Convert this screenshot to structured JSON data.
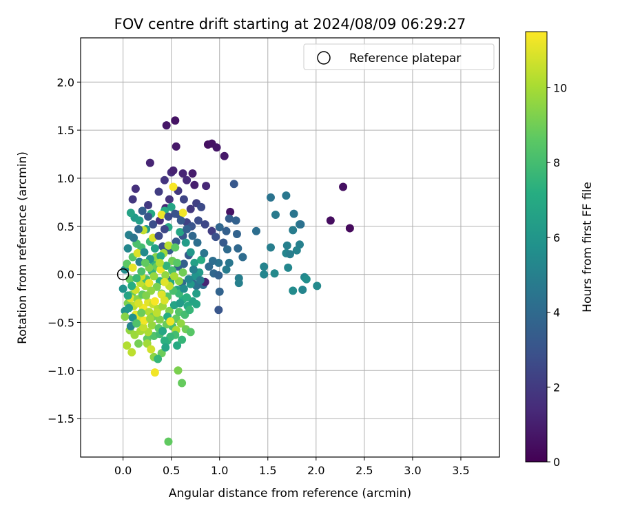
{
  "chart_data": {
    "type": "scatter",
    "title": "FOV centre drift starting at 2024/08/09 06:29:27",
    "xlabel": "Angular distance from reference (arcmin)",
    "ylabel": "Rotation from reference (arcmin)",
    "xlim": [
      -0.44,
      3.9
    ],
    "ylim": [
      -1.9,
      2.46
    ],
    "xticks": [
      0.0,
      0.5,
      1.0,
      1.5,
      2.0,
      2.5,
      3.0,
      3.5
    ],
    "xtick_labels": [
      "0.0",
      "0.5",
      "1.0",
      "1.5",
      "2.0",
      "2.5",
      "3.0",
      "3.5"
    ],
    "yticks": [
      -1.5,
      -1.0,
      -0.5,
      0.0,
      0.5,
      1.0,
      1.5,
      2.0
    ],
    "ytick_labels": [
      "−1.5",
      "−1.0",
      "−0.5",
      "0.0",
      "0.5",
      "1.0",
      "1.5",
      "2.0"
    ],
    "grid": true,
    "legend": {
      "position": "top-right",
      "label": "Reference platepar"
    },
    "reference_point": {
      "x": 0.0,
      "y": 0.0
    },
    "colorbar": {
      "label": "Hours from first FF file",
      "range": [
        0,
        11.5
      ],
      "ticks": [
        0,
        2,
        4,
        6,
        8,
        10
      ],
      "tick_labels": [
        "0",
        "2",
        "4",
        "6",
        "8",
        "10"
      ],
      "colormap": "viridis"
    },
    "points": [
      [
        0.54,
        1.6,
        0.6
      ],
      [
        0.45,
        1.55,
        0.7
      ],
      [
        0.55,
        1.33,
        0.8
      ],
      [
        0.88,
        1.35,
        0.5
      ],
      [
        0.92,
        1.36,
        0.6
      ],
      [
        0.97,
        1.32,
        0.7
      ],
      [
        1.05,
        1.23,
        0.8
      ],
      [
        0.28,
        1.16,
        1.2
      ],
      [
        2.28,
        0.91,
        0.5
      ],
      [
        2.15,
        0.56,
        0.4
      ],
      [
        2.35,
        0.48,
        0.3
      ],
      [
        1.11,
        0.65,
        0.6
      ],
      [
        0.5,
        1.06,
        1.5
      ],
      [
        0.62,
        1.05,
        1.2
      ],
      [
        0.72,
        1.05,
        0.9
      ],
      [
        0.52,
        1.08,
        1.1
      ],
      [
        0.43,
        0.98,
        1.8
      ],
      [
        0.66,
        0.98,
        1.4
      ],
      [
        0.74,
        0.93,
        1.0
      ],
      [
        0.86,
        0.92,
        1.3
      ],
      [
        0.13,
        0.89,
        1.6
      ],
      [
        0.37,
        0.86,
        2.1
      ],
      [
        0.57,
        0.87,
        1.9
      ],
      [
        0.1,
        0.78,
        1.9
      ],
      [
        0.48,
        0.78,
        1.7
      ],
      [
        0.26,
        0.72,
        2.0
      ],
      [
        0.63,
        0.78,
        2.4
      ],
      [
        0.76,
        0.74,
        2.2
      ],
      [
        0.44,
        0.69,
        1.3
      ],
      [
        0.7,
        0.68,
        1.9
      ],
      [
        0.81,
        0.7,
        2.6
      ],
      [
        0.58,
        0.62,
        2.8
      ],
      [
        0.66,
        0.54,
        2.3
      ],
      [
        0.78,
        0.56,
        2.7
      ],
      [
        0.85,
        0.52,
        2.5
      ],
      [
        0.38,
        0.56,
        1.6
      ],
      [
        0.92,
        0.45,
        2.1
      ],
      [
        0.96,
        0.39,
        2.9
      ],
      [
        1.1,
        0.58,
        3.4
      ],
      [
        1.15,
        0.94,
        3.2
      ],
      [
        1.17,
        0.56,
        3.6
      ],
      [
        1.0,
        0.49,
        3.8
      ],
      [
        1.07,
        0.45,
        3.5
      ],
      [
        1.04,
        0.33,
        3.3
      ],
      [
        1.18,
        0.42,
        3.7
      ],
      [
        1.08,
        0.26,
        4.0
      ],
      [
        1.19,
        0.27,
        3.9
      ],
      [
        1.24,
        0.18,
        4.1
      ],
      [
        1.38,
        0.45,
        4.2
      ],
      [
        1.53,
        0.8,
        4.4
      ],
      [
        1.69,
        0.82,
        4.6
      ],
      [
        1.58,
        0.62,
        4.7
      ],
      [
        1.77,
        0.63,
        4.5
      ],
      [
        1.83,
        0.52,
        4.9
      ],
      [
        1.76,
        0.46,
        4.8
      ],
      [
        1.84,
        0.52,
        4.3
      ],
      [
        1.53,
        0.28,
        4.9
      ],
      [
        1.7,
        0.3,
        5.0
      ],
      [
        1.8,
        0.25,
        5.1
      ],
      [
        1.69,
        0.22,
        5.2
      ],
      [
        1.73,
        0.21,
        4.9
      ],
      [
        1.83,
        0.31,
        5.0
      ],
      [
        1.46,
        0.08,
        5.1
      ],
      [
        1.71,
        0.07,
        5.3
      ],
      [
        1.46,
        0.0,
        5.2
      ],
      [
        1.57,
        0.01,
        5.4
      ],
      [
        1.76,
        -0.17,
        5.5
      ],
      [
        1.86,
        -0.16,
        5.2
      ],
      [
        1.88,
        -0.03,
        5.3
      ],
      [
        1.9,
        -0.05,
        5.6
      ],
      [
        2.01,
        -0.12,
        5.4
      ],
      [
        1.2,
        -0.04,
        4.9
      ],
      [
        1.2,
        -0.09,
        5.0
      ],
      [
        1.07,
        0.05,
        4.8
      ],
      [
        1.1,
        0.12,
        4.6
      ],
      [
        0.99,
        0.12,
        4.4
      ],
      [
        0.93,
        0.14,
        4.2
      ],
      [
        0.89,
        0.08,
        4.0
      ],
      [
        0.94,
        0.01,
        3.8
      ],
      [
        0.99,
        -0.01,
        3.6
      ],
      [
        1.0,
        -0.18,
        3.7
      ],
      [
        0.99,
        -0.37,
        3.1
      ],
      [
        0.71,
        0.5,
        3.0
      ],
      [
        0.62,
        0.4,
        3.1
      ],
      [
        0.55,
        0.34,
        3.2
      ],
      [
        0.68,
        0.2,
        3.3
      ],
      [
        0.63,
        0.11,
        3.5
      ],
      [
        0.48,
        0.25,
        3.4
      ],
      [
        0.41,
        0.29,
        2.9
      ],
      [
        0.57,
        0.08,
        3.6
      ],
      [
        0.49,
        -0.06,
        3.8
      ],
      [
        0.61,
        -0.09,
        4.0
      ],
      [
        0.72,
        -0.09,
        3.9
      ],
      [
        0.76,
        -0.12,
        4.3
      ],
      [
        0.83,
        -0.11,
        4.1
      ],
      [
        0.85,
        -0.08,
        1.2
      ],
      [
        0.06,
        0.41,
        5.0
      ],
      [
        0.05,
        0.27,
        5.3
      ],
      [
        0.02,
        0.05,
        5.6
      ],
      [
        0.0,
        -0.15,
        5.8
      ],
      [
        0.02,
        -0.38,
        5.9
      ],
      [
        0.12,
        0.59,
        6.2
      ],
      [
        0.08,
        0.64,
        6.6
      ],
      [
        0.17,
        0.56,
        6.4
      ],
      [
        0.24,
        0.47,
        6.1
      ],
      [
        0.29,
        0.63,
        7.0
      ],
      [
        0.43,
        0.66,
        7.2
      ],
      [
        0.5,
        0.7,
        6.7
      ],
      [
        0.47,
        0.49,
        6.9
      ],
      [
        0.59,
        0.44,
        6.8
      ],
      [
        0.65,
        0.33,
        6.3
      ],
      [
        0.7,
        0.23,
        6.0
      ],
      [
        0.74,
        0.12,
        6.5
      ],
      [
        0.81,
        0.15,
        7.1
      ],
      [
        0.79,
        0.02,
        6.2
      ],
      [
        0.75,
        -0.02,
        5.9
      ],
      [
        0.7,
        -0.1,
        6.1
      ],
      [
        0.76,
        -0.2,
        6.4
      ],
      [
        0.72,
        -0.28,
        6.6
      ],
      [
        0.76,
        -0.31,
        6.8
      ],
      [
        0.67,
        -0.33,
        7.0
      ],
      [
        0.62,
        -0.26,
        7.2
      ],
      [
        0.56,
        -0.16,
        6.6
      ],
      [
        0.49,
        -0.09,
        7.0
      ],
      [
        0.38,
        -0.07,
        7.3
      ],
      [
        0.32,
        0.12,
        7.5
      ],
      [
        0.28,
        0.34,
        7.8
      ],
      [
        0.19,
        0.28,
        8.0
      ],
      [
        0.14,
        0.32,
        8.2
      ],
      [
        0.1,
        0.18,
        8.4
      ],
      [
        0.04,
        0.11,
        8.6
      ],
      [
        0.07,
        -0.05,
        8.8
      ],
      [
        0.09,
        -0.21,
        9.0
      ],
      [
        0.05,
        -0.3,
        9.2
      ],
      [
        0.02,
        -0.44,
        9.4
      ],
      [
        0.07,
        -0.58,
        9.6
      ],
      [
        0.12,
        -0.63,
        9.8
      ],
      [
        0.18,
        -0.59,
        10.0
      ],
      [
        0.04,
        -0.74,
        10.2
      ],
      [
        0.09,
        -0.81,
        10.4
      ],
      [
        0.16,
        -0.72,
        9.1
      ],
      [
        0.25,
        -0.67,
        8.7
      ],
      [
        0.32,
        -0.64,
        8.3
      ],
      [
        0.38,
        -0.62,
        7.9
      ],
      [
        0.46,
        -0.69,
        7.4
      ],
      [
        0.56,
        -0.74,
        7.0
      ],
      [
        0.61,
        -0.68,
        7.6
      ],
      [
        0.51,
        -0.54,
        8.1
      ],
      [
        0.45,
        -0.52,
        8.9
      ],
      [
        0.38,
        -0.47,
        9.3
      ],
      [
        0.3,
        -0.53,
        9.7
      ],
      [
        0.26,
        -0.6,
        10.1
      ],
      [
        0.21,
        -0.55,
        10.5
      ],
      [
        0.17,
        -0.47,
        10.8
      ],
      [
        0.13,
        -0.42,
        11.1
      ],
      [
        0.21,
        -0.35,
        11.3
      ],
      [
        0.26,
        -0.29,
        11.0
      ],
      [
        0.31,
        -0.31,
        10.6
      ],
      [
        0.36,
        -0.36,
        10.2
      ],
      [
        0.41,
        -0.33,
        9.8
      ],
      [
        0.48,
        -0.38,
        9.3
      ],
      [
        0.55,
        -0.46,
        8.8
      ],
      [
        0.58,
        -0.39,
        8.4
      ],
      [
        0.64,
        -0.42,
        8.0
      ],
      [
        0.69,
        -0.37,
        7.6
      ],
      [
        0.66,
        -0.24,
        7.3
      ],
      [
        0.58,
        -0.2,
        7.7
      ],
      [
        0.52,
        -0.17,
        8.1
      ],
      [
        0.46,
        -0.23,
        8.5
      ],
      [
        0.4,
        -0.2,
        8.9
      ],
      [
        0.35,
        -0.13,
        9.2
      ],
      [
        0.29,
        -0.17,
        9.6
      ],
      [
        0.23,
        -0.12,
        10.0
      ],
      [
        0.18,
        -0.09,
        10.4
      ],
      [
        0.13,
        -0.16,
        10.7
      ],
      [
        0.08,
        -0.25,
        11.0
      ],
      [
        0.11,
        -0.33,
        10.3
      ],
      [
        0.15,
        -0.26,
        9.5
      ],
      [
        0.2,
        -0.21,
        8.7
      ],
      [
        0.24,
        -0.05,
        8.0
      ],
      [
        0.3,
        0.03,
        7.6
      ],
      [
        0.35,
        0.08,
        8.8
      ],
      [
        0.39,
        0.05,
        11.2
      ],
      [
        0.34,
        0.18,
        9.4
      ],
      [
        0.42,
        0.22,
        9.9
      ],
      [
        0.47,
        0.3,
        10.3
      ],
      [
        0.54,
        0.28,
        8.6
      ],
      [
        0.51,
        0.14,
        9.0
      ],
      [
        0.44,
        -0.01,
        9.6
      ],
      [
        0.52,
        0.91,
        11.4
      ],
      [
        0.62,
        0.64,
        11.3
      ],
      [
        0.4,
        0.62,
        11.2
      ],
      [
        0.31,
        0.38,
        10.9
      ],
      [
        0.21,
        0.46,
        10.5
      ],
      [
        0.15,
        0.22,
        10.9
      ],
      [
        0.1,
        0.07,
        11.1
      ],
      [
        0.19,
        -0.02,
        10.6
      ],
      [
        0.27,
        -0.09,
        11.2
      ],
      [
        0.33,
        -0.28,
        11.4
      ],
      [
        0.4,
        -0.21,
        11.0
      ],
      [
        0.27,
        -0.39,
        10.2
      ],
      [
        0.22,
        -0.48,
        11.3
      ],
      [
        0.16,
        -0.3,
        10.8
      ],
      [
        0.31,
        -0.44,
        9.1
      ],
      [
        0.37,
        -0.56,
        8.6
      ],
      [
        0.25,
        -0.72,
        9.9
      ],
      [
        0.29,
        -0.78,
        10.7
      ],
      [
        0.32,
        -0.86,
        9.5
      ],
      [
        0.4,
        -0.82,
        8.9
      ],
      [
        0.36,
        -0.88,
        7.6
      ],
      [
        0.33,
        -1.02,
        11.3
      ],
      [
        0.57,
        -1.0,
        9.2
      ],
      [
        0.61,
        -1.13,
        8.8
      ],
      [
        0.47,
        -1.74,
        8.7
      ],
      [
        0.41,
        -0.59,
        6.9
      ],
      [
        0.46,
        -0.44,
        7.2
      ],
      [
        0.53,
        -0.32,
        6.7
      ],
      [
        0.59,
        -0.3,
        6.3
      ],
      [
        0.63,
        -0.15,
        5.6
      ],
      [
        0.68,
        -0.05,
        5.3
      ],
      [
        0.73,
        0.05,
        5.0
      ],
      [
        0.8,
        -0.06,
        4.7
      ],
      [
        0.84,
        0.22,
        4.5
      ],
      [
        0.77,
        0.33,
        4.2
      ],
      [
        0.72,
        0.4,
        3.9
      ],
      [
        0.66,
        0.47,
        3.6
      ],
      [
        0.6,
        0.56,
        3.3
      ],
      [
        0.54,
        0.63,
        3.0
      ],
      [
        0.47,
        0.6,
        2.7
      ],
      [
        0.43,
        0.47,
        2.5
      ],
      [
        0.37,
        0.4,
        2.6
      ],
      [
        0.31,
        0.52,
        2.8
      ],
      [
        0.26,
        0.6,
        3.1
      ],
      [
        0.2,
        0.66,
        3.5
      ],
      [
        0.16,
        0.47,
        4.0
      ],
      [
        0.11,
        0.38,
        4.5
      ],
      [
        0.17,
        0.13,
        5.0
      ],
      [
        0.22,
        0.23,
        5.5
      ],
      [
        0.28,
        0.16,
        6.0
      ],
      [
        0.33,
        0.27,
        6.5
      ],
      [
        0.39,
        0.19,
        7.0
      ],
      [
        0.45,
        0.09,
        7.5
      ],
      [
        0.51,
        0.04,
        8.0
      ],
      [
        0.56,
        0.12,
        8.5
      ],
      [
        0.62,
        0.02,
        9.0
      ],
      [
        0.58,
        -0.07,
        9.5
      ],
      [
        0.53,
        -0.02,
        10.0
      ],
      [
        0.48,
        -0.12,
        10.5
      ],
      [
        0.43,
        -0.08,
        11.0
      ],
      [
        0.38,
        0.12,
        10.2
      ],
      [
        0.32,
        -0.02,
        9.7
      ],
      [
        0.27,
        0.07,
        9.2
      ],
      [
        0.23,
        0.12,
        8.7
      ],
      [
        0.19,
        0.03,
        8.2
      ],
      [
        0.14,
        -0.04,
        7.7
      ],
      [
        0.09,
        -0.12,
        7.2
      ],
      [
        0.05,
        -0.22,
        6.7
      ],
      [
        0.06,
        -0.35,
        6.2
      ],
      [
        0.1,
        -0.45,
        5.7
      ],
      [
        0.08,
        -0.54,
        5.2
      ],
      [
        0.14,
        -0.51,
        8.3
      ],
      [
        0.19,
        -0.4,
        8.9
      ],
      [
        0.24,
        -0.22,
        9.3
      ],
      [
        0.28,
        -0.46,
        9.8
      ],
      [
        0.35,
        -0.4,
        10.4
      ],
      [
        0.43,
        -0.27,
        10.9
      ],
      [
        0.49,
        -0.49,
        11.2
      ],
      [
        0.55,
        -0.58,
        10.1
      ],
      [
        0.6,
        -0.51,
        9.6
      ],
      [
        0.65,
        -0.57,
        9.0
      ],
      [
        0.7,
        -0.6,
        8.5
      ],
      [
        0.54,
        -0.63,
        8.0
      ],
      [
        0.49,
        -0.65,
        7.7
      ],
      [
        0.43,
        -0.69,
        7.3
      ],
      [
        0.44,
        -0.76,
        6.8
      ]
    ]
  }
}
